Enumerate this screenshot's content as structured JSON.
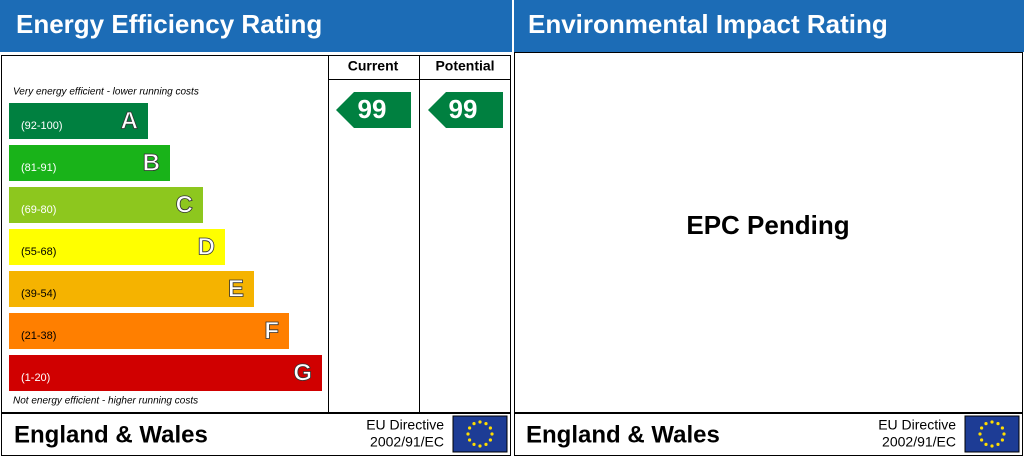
{
  "left_panel": {
    "title": "Energy Efficiency Rating",
    "columns": [
      "Current",
      "Potential"
    ],
    "top_note": "Very energy efficient - lower running costs",
    "bottom_note": "Not energy efficient - higher running costs",
    "bands": [
      {
        "range": "(92-100)",
        "letter": "A",
        "color": "#008040"
      },
      {
        "range": "(81-91)",
        "letter": "B",
        "color": "#19b319"
      },
      {
        "range": "(69-80)",
        "letter": "C",
        "color": "#8dc71e"
      },
      {
        "range": "(55-68)",
        "letter": "D",
        "color": "#ffff00"
      },
      {
        "range": "(39-54)",
        "letter": "E",
        "color": "#f5b300"
      },
      {
        "range": "(21-38)",
        "letter": "F",
        "color": "#ff7f00"
      },
      {
        "range": "(1-20)",
        "letter": "G",
        "color": "#d00000"
      }
    ],
    "current": 99,
    "potential": 99,
    "footer": {
      "region": "England & Wales",
      "directive": "EU Directive",
      "code": "2002/91/EC"
    }
  },
  "right_panel": {
    "title": "Environmental Impact Rating",
    "message": "EPC Pending",
    "footer": {
      "region": "England & Wales",
      "directive": "EU Directive",
      "code": "2002/91/EC"
    }
  }
}
